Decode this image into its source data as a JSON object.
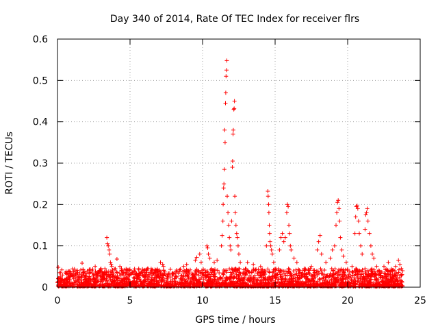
{
  "chart_data": {
    "type": "scatter",
    "title": "Day 340 of 2014, Rate Of TEC Index for receiver flrs",
    "xlabel": "GPS time / hours",
    "ylabel": "ROTI / TECUs",
    "xlim": [
      0,
      25
    ],
    "ylim": [
      0,
      0.6
    ],
    "xticks": [
      0,
      5,
      10,
      15,
      20,
      25
    ],
    "yticks": [
      0,
      0.1,
      0.2,
      0.3,
      0.4,
      0.5,
      0.6
    ],
    "xtick_labels": [
      "0",
      "5",
      "10",
      "15",
      "20",
      "25"
    ],
    "ytick_labels": [
      "0",
      "0.1",
      "0.2",
      "0.3",
      "0.4",
      "0.5",
      "0.6"
    ],
    "grid": true,
    "marker": "+",
    "color": "#ff0000",
    "background": {
      "description": "dense band of samples across 0-23.8 h",
      "x_range": [
        0,
        23.8
      ],
      "y_range": [
        0.002,
        0.045
      ],
      "count": 2400
    },
    "series": [
      {
        "name": "ROTI",
        "points": [
          [
            0.05,
            0.048
          ],
          [
            0.15,
            0.035
          ],
          [
            0.3,
            0.042
          ],
          [
            1.7,
            0.058
          ],
          [
            2.6,
            0.05
          ],
          [
            3.0,
            0.045
          ],
          [
            3.4,
            0.12
          ],
          [
            3.45,
            0.105
          ],
          [
            3.5,
            0.1
          ],
          [
            3.55,
            0.09
          ],
          [
            3.6,
            0.08
          ],
          [
            3.65,
            0.06
          ],
          [
            3.7,
            0.055
          ],
          [
            3.75,
            0.05
          ],
          [
            4.1,
            0.068
          ],
          [
            4.3,
            0.05
          ],
          [
            5.6,
            0.045
          ],
          [
            6.2,
            0.045
          ],
          [
            7.1,
            0.06
          ],
          [
            7.25,
            0.055
          ],
          [
            7.3,
            0.05
          ],
          [
            8.7,
            0.05
          ],
          [
            8.9,
            0.055
          ],
          [
            9.5,
            0.065
          ],
          [
            9.6,
            0.072
          ],
          [
            9.8,
            0.08
          ],
          [
            9.9,
            0.06
          ],
          [
            10.3,
            0.1
          ],
          [
            10.35,
            0.095
          ],
          [
            10.4,
            0.08
          ],
          [
            10.5,
            0.07
          ],
          [
            10.8,
            0.06
          ],
          [
            11.0,
            0.065
          ],
          [
            11.3,
            0.1
          ],
          [
            11.35,
            0.125
          ],
          [
            11.4,
            0.16
          ],
          [
            11.42,
            0.2
          ],
          [
            11.45,
            0.24
          ],
          [
            11.47,
            0.25
          ],
          [
            11.5,
            0.285
          ],
          [
            11.52,
            0.38
          ],
          [
            11.55,
            0.35
          ],
          [
            11.58,
            0.445
          ],
          [
            11.6,
            0.47
          ],
          [
            11.62,
            0.51
          ],
          [
            11.65,
            0.525
          ],
          [
            11.67,
            0.548
          ],
          [
            11.7,
            0.22
          ],
          [
            11.75,
            0.18
          ],
          [
            11.8,
            0.15
          ],
          [
            11.85,
            0.12
          ],
          [
            11.9,
            0.1
          ],
          [
            11.95,
            0.09
          ],
          [
            12.0,
            0.16
          ],
          [
            12.05,
            0.29
          ],
          [
            12.07,
            0.305
          ],
          [
            12.1,
            0.37
          ],
          [
            12.12,
            0.38
          ],
          [
            12.15,
            0.43
          ],
          [
            12.18,
            0.432
          ],
          [
            12.2,
            0.45
          ],
          [
            12.22,
            0.22
          ],
          [
            12.25,
            0.18
          ],
          [
            12.3,
            0.15
          ],
          [
            12.35,
            0.13
          ],
          [
            12.4,
            0.12
          ],
          [
            12.45,
            0.1
          ],
          [
            12.5,
            0.08
          ],
          [
            12.6,
            0.06
          ],
          [
            13.1,
            0.06
          ],
          [
            13.5,
            0.055
          ],
          [
            14.0,
            0.05
          ],
          [
            14.4,
            0.1
          ],
          [
            14.5,
            0.232
          ],
          [
            14.52,
            0.22
          ],
          [
            14.55,
            0.2
          ],
          [
            14.57,
            0.18
          ],
          [
            14.6,
            0.15
          ],
          [
            14.62,
            0.13
          ],
          [
            14.65,
            0.11
          ],
          [
            14.7,
            0.1
          ],
          [
            14.75,
            0.09
          ],
          [
            14.8,
            0.08
          ],
          [
            14.9,
            0.06
          ],
          [
            15.3,
            0.09
          ],
          [
            15.4,
            0.12
          ],
          [
            15.5,
            0.13
          ],
          [
            15.6,
            0.11
          ],
          [
            15.7,
            0.12
          ],
          [
            15.8,
            0.18
          ],
          [
            15.85,
            0.2
          ],
          [
            15.9,
            0.195
          ],
          [
            15.95,
            0.15
          ],
          [
            16.0,
            0.13
          ],
          [
            16.05,
            0.1
          ],
          [
            16.1,
            0.09
          ],
          [
            16.3,
            0.07
          ],
          [
            16.5,
            0.06
          ],
          [
            17.0,
            0.045
          ],
          [
            17.5,
            0.05
          ],
          [
            17.9,
            0.09
          ],
          [
            18.0,
            0.11
          ],
          [
            18.1,
            0.125
          ],
          [
            18.2,
            0.08
          ],
          [
            18.5,
            0.06
          ],
          [
            18.8,
            0.07
          ],
          [
            18.95,
            0.09
          ],
          [
            19.1,
            0.1
          ],
          [
            19.2,
            0.15
          ],
          [
            19.25,
            0.18
          ],
          [
            19.3,
            0.205
          ],
          [
            19.35,
            0.21
          ],
          [
            19.4,
            0.19
          ],
          [
            19.45,
            0.16
          ],
          [
            19.5,
            0.12
          ],
          [
            19.6,
            0.09
          ],
          [
            19.7,
            0.075
          ],
          [
            19.9,
            0.06
          ],
          [
            20.3,
            0.05
          ],
          [
            20.5,
            0.13
          ],
          [
            20.55,
            0.17
          ],
          [
            20.6,
            0.195
          ],
          [
            20.65,
            0.197
          ],
          [
            20.7,
            0.19
          ],
          [
            20.75,
            0.16
          ],
          [
            20.8,
            0.13
          ],
          [
            20.9,
            0.1
          ],
          [
            21.0,
            0.08
          ],
          [
            21.2,
            0.14
          ],
          [
            21.25,
            0.175
          ],
          [
            21.3,
            0.18
          ],
          [
            21.35,
            0.19
          ],
          [
            21.4,
            0.16
          ],
          [
            21.5,
            0.13
          ],
          [
            21.6,
            0.1
          ],
          [
            21.7,
            0.08
          ],
          [
            21.8,
            0.07
          ],
          [
            22.0,
            0.05
          ],
          [
            22.5,
            0.05
          ],
          [
            22.8,
            0.06
          ],
          [
            23.3,
            0.05
          ],
          [
            23.5,
            0.065
          ],
          [
            23.6,
            0.055
          ],
          [
            23.7,
            0.045
          ]
        ]
      }
    ]
  }
}
